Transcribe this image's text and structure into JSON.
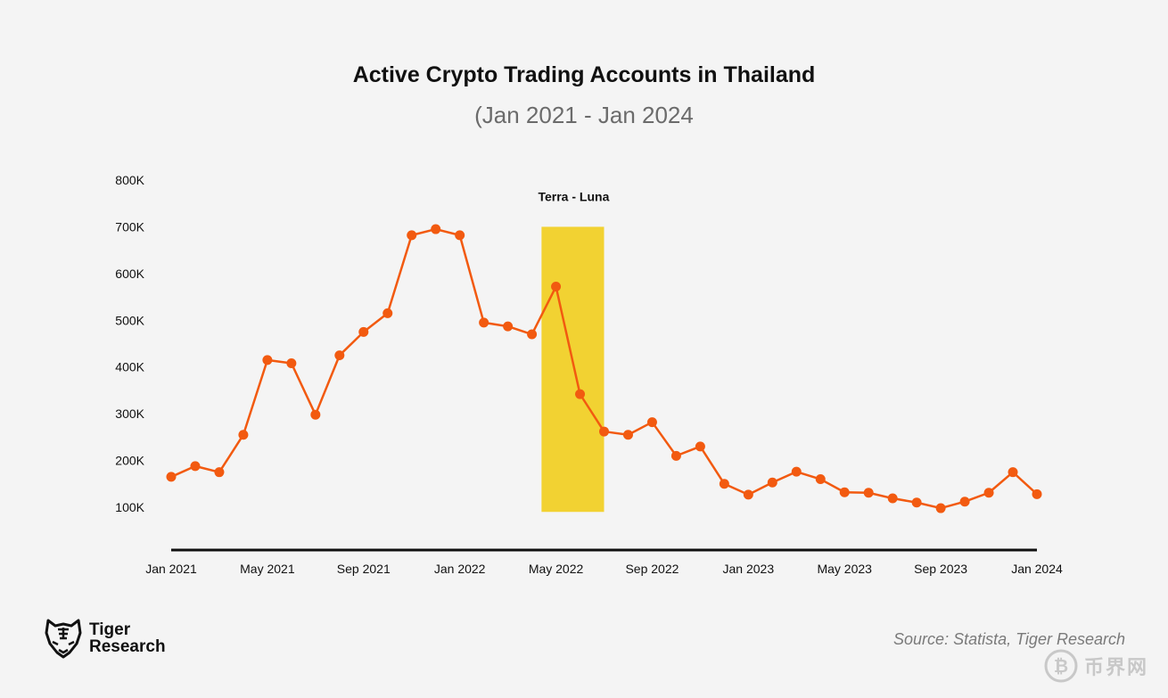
{
  "chart_data": {
    "type": "line",
    "title": "Active Crypto Trading Accounts in Thailand",
    "subtitle": "(Jan 2021 - Jan 2024",
    "xlabel": "",
    "ylabel": "",
    "ylim": [
      0,
      800000
    ],
    "yticks": [
      100000,
      200000,
      300000,
      400000,
      500000,
      600000,
      700000,
      800000
    ],
    "ytick_labels": [
      "100K",
      "200K",
      "300K",
      "400K",
      "500K",
      "600K",
      "700K",
      "800K"
    ],
    "xtick_positions": [
      0,
      4,
      8,
      12,
      16,
      20,
      24,
      28,
      32,
      36
    ],
    "xtick_labels": [
      "Jan 2021",
      "May 2021",
      "Sep 2021",
      "Jan 2022",
      "May 2022",
      "Sep 2022",
      "Jan 2023",
      "May 2023",
      "Sep 2023",
      "Jan 2024"
    ],
    "series": [
      {
        "name": "Active Crypto Trading Accounts",
        "color": "#f25a10",
        "values": [
          165000,
          188000,
          175000,
          255000,
          415000,
          408000,
          298000,
          425000,
          475000,
          515000,
          682000,
          695000,
          682000,
          495000,
          487000,
          470000,
          572000,
          342000,
          262000,
          255000,
          282000,
          210000,
          230000,
          150000,
          127000,
          153000,
          176000,
          160000,
          132000,
          131000,
          119000,
          110000,
          98000,
          112000,
          131000,
          175000,
          128000
        ]
      }
    ],
    "annotation": {
      "label": "Terra - Luna",
      "x_start": 15.4,
      "x_end": 18.0,
      "y_bottom": 90000,
      "y_top": 700000,
      "color": "#f2d232"
    }
  },
  "branding": {
    "logo_line1": "Tiger",
    "logo_line2": "Research",
    "logo_icon": "tiger-head-icon"
  },
  "source": "Source: Statista, Tiger Research",
  "watermark": {
    "text": "币界网",
    "icon": "bitcoin-icon"
  }
}
